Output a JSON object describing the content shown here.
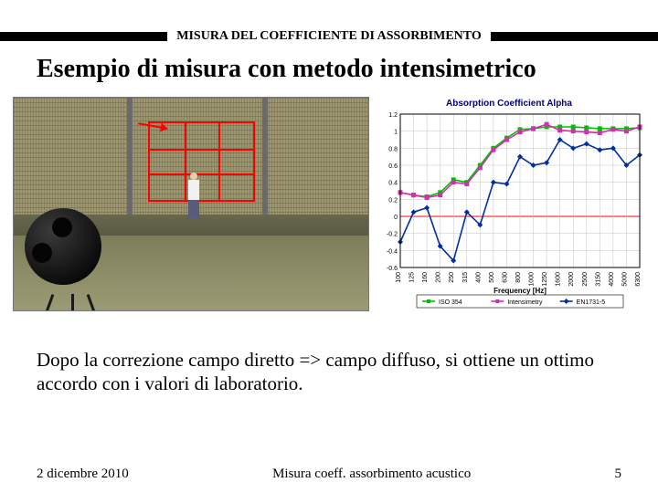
{
  "header": {
    "text": "MISURA DEL COEFFICIENTE DI ASSORBIMENTO"
  },
  "title": "Esempio di misura con metodo intensimetrico",
  "chart": {
    "type": "line",
    "title": "Absorption Coefficient Alpha",
    "xlabel": "Frequency [Hz]",
    "ylim": [
      -0.6,
      1.2
    ],
    "yticks": [
      -0.6,
      -0.4,
      -0.2,
      0,
      0.2,
      0.4,
      0.6,
      0.8,
      1,
      1.2
    ],
    "x_categories": [
      "100",
      "125",
      "160",
      "200",
      "250",
      "315",
      "400",
      "500",
      "630",
      "800",
      "1000",
      "1250",
      "1600",
      "2000",
      "2500",
      "3150",
      "4000",
      "5000",
      "6300"
    ],
    "background_color": "#ffffff",
    "grid_color": "#c0c0c0",
    "axis_color": "#000000",
    "zero_line_color": "#ff0000",
    "label_fontsize": 8,
    "tick_fontsize": 7,
    "series": [
      {
        "name": "ISO 354",
        "color": "#00c000",
        "marker": "square",
        "values": [
          0.28,
          0.25,
          0.23,
          0.28,
          0.43,
          0.4,
          0.6,
          0.8,
          0.92,
          1.02,
          1.03,
          1.05,
          1.05,
          1.05,
          1.04,
          1.03,
          1.03,
          1.03,
          1.04
        ]
      },
      {
        "name": "Intensimetry",
        "color": "#d030b0",
        "marker": "square",
        "values": [
          0.28,
          0.25,
          0.22,
          0.25,
          0.4,
          0.38,
          0.57,
          0.78,
          0.9,
          0.99,
          1.03,
          1.08,
          1.01,
          1.0,
          0.99,
          0.98,
          1.02,
          1.0,
          1.05
        ]
      },
      {
        "name": "EN1731-5",
        "color": "#0030a0",
        "marker": "diamond",
        "values": [
          -0.3,
          0.05,
          0.1,
          -0.35,
          -0.52,
          0.05,
          -0.1,
          0.4,
          0.38,
          0.7,
          0.6,
          0.63,
          0.9,
          0.8,
          0.85,
          0.78,
          0.8,
          0.6,
          0.72
        ]
      }
    ]
  },
  "body_text": "Dopo la correzione campo diretto => campo diffuso, si ottiene un ottimo accordo con i valori di laboratorio.",
  "footer": {
    "date": "2 dicembre 2010",
    "center": "Misura coeff. assorbimento acustico",
    "page": "5"
  }
}
